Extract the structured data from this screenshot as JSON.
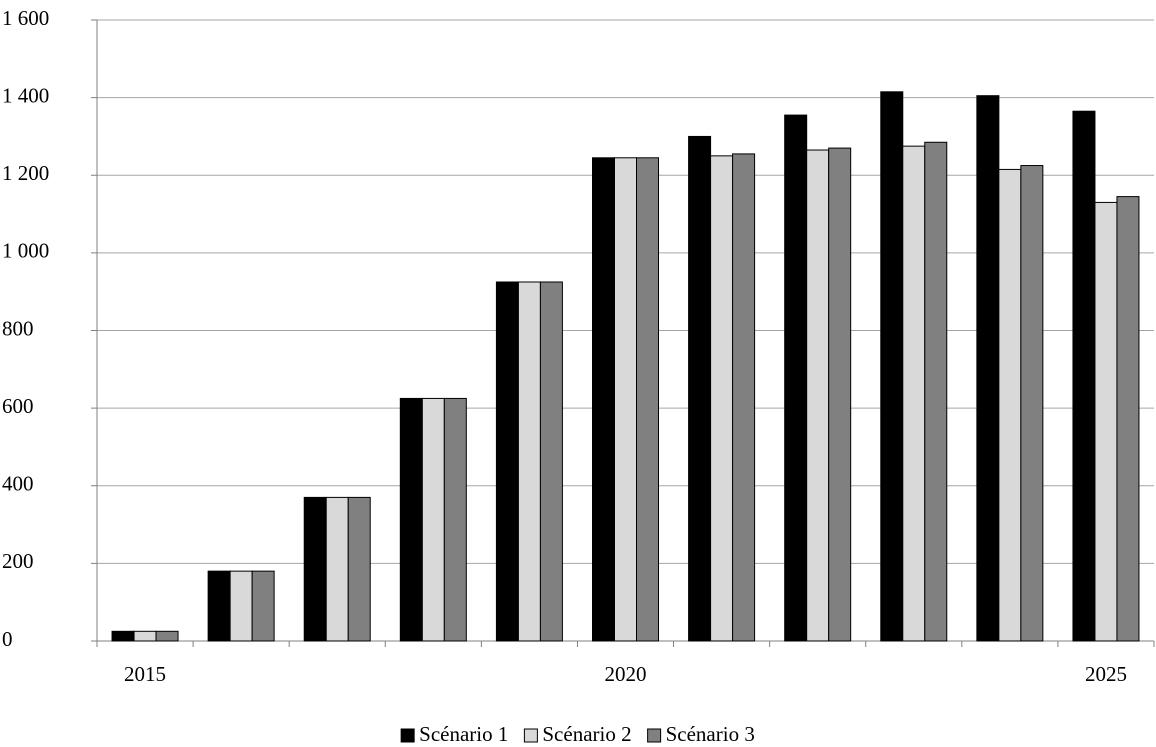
{
  "chart_data": {
    "type": "bar",
    "categories": [
      "2015",
      null,
      null,
      null,
      null,
      "2020",
      null,
      null,
      null,
      null,
      "2025"
    ],
    "series": [
      {
        "name": "Scénario 1",
        "color": "#000000",
        "values": [
          25,
          180,
          370,
          625,
          925,
          1245,
          1300,
          1355,
          1415,
          1405,
          1365
        ]
      },
      {
        "name": "Scénario 2",
        "color": "#d9d9d9",
        "values": [
          25,
          180,
          370,
          625,
          925,
          1245,
          1250,
          1265,
          1275,
          1215,
          1130
        ]
      },
      {
        "name": "Scénario 3",
        "color": "#808080",
        "values": [
          25,
          180,
          370,
          625,
          925,
          1245,
          1255,
          1270,
          1285,
          1225,
          1145
        ]
      }
    ],
    "ylim": [
      0,
      1600
    ],
    "yticks": [
      0,
      200,
      400,
      600,
      800,
      {
        "value": 1000,
        "label": "1 000"
      },
      {
        "value": 1200,
        "label": "1 200"
      },
      {
        "value": 1400,
        "label": "1 400"
      },
      {
        "value": 1600,
        "label": "1 600"
      }
    ],
    "grid": true,
    "legend": "bottom"
  }
}
